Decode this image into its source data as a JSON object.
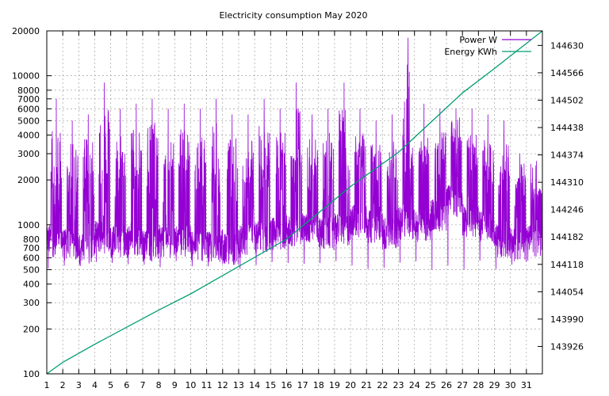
{
  "chart_data": {
    "type": "line",
    "title": "Electricity consumption May 2020",
    "x": {
      "label": "",
      "range": [
        1,
        32
      ],
      "ticks": [
        1,
        2,
        3,
        4,
        5,
        6,
        7,
        8,
        9,
        10,
        11,
        12,
        13,
        14,
        15,
        16,
        17,
        18,
        19,
        20,
        21,
        22,
        23,
        24,
        25,
        26,
        27,
        28,
        29,
        30,
        31
      ]
    },
    "y_left": {
      "label": "",
      "scale": "log",
      "range": [
        100,
        20000
      ],
      "ticks": [
        100,
        200,
        300,
        400,
        500,
        600,
        700,
        800,
        1000,
        2000,
        3000,
        4000,
        5000,
        6000,
        7000,
        8000,
        10000,
        20000
      ]
    },
    "y_right": {
      "label": "",
      "scale": "linear",
      "range": [
        143862,
        144664
      ],
      "ticks": [
        143926,
        143990,
        144054,
        144118,
        144182,
        144246,
        144310,
        144374,
        144438,
        144502,
        144566,
        144630
      ]
    },
    "legend": {
      "placement": "top-right"
    },
    "grid": true,
    "series": [
      {
        "name": "Power W",
        "axis": "left",
        "color": "#9400d3",
        "note_kind": "dense",
        "day_base": [
          800,
          750,
          700,
          850,
          800,
          800,
          750,
          800,
          800,
          750,
          750,
          700,
          800,
          850,
          900,
          950,
          950,
          900,
          950,
          1100,
          1000,
          900,
          1050,
          1000,
          1200,
          1500,
          1100,
          1000,
          800,
          750,
          800
        ],
        "day_peak": [
          7000,
          5000,
          5500,
          9000,
          6000,
          6500,
          7000,
          6000,
          6500,
          6000,
          7000,
          5500,
          5500,
          7000,
          6000,
          9000,
          5500,
          6000,
          9000,
          6000,
          5000,
          5500,
          18000,
          6500,
          6000,
          6000,
          6000,
          5500,
          5000,
          3000,
          2500
        ],
        "floor": 500
      },
      {
        "name": "Energy KWh",
        "axis": "right",
        "color": "#009e73",
        "x": [
          1,
          2,
          4,
          8,
          10,
          16,
          20,
          23,
          27,
          29,
          32
        ],
        "y": [
          143862,
          143889,
          143931,
          144011,
          144049,
          144177,
          144300,
          144380,
          144519,
          144576,
          144664
        ]
      }
    ]
  }
}
